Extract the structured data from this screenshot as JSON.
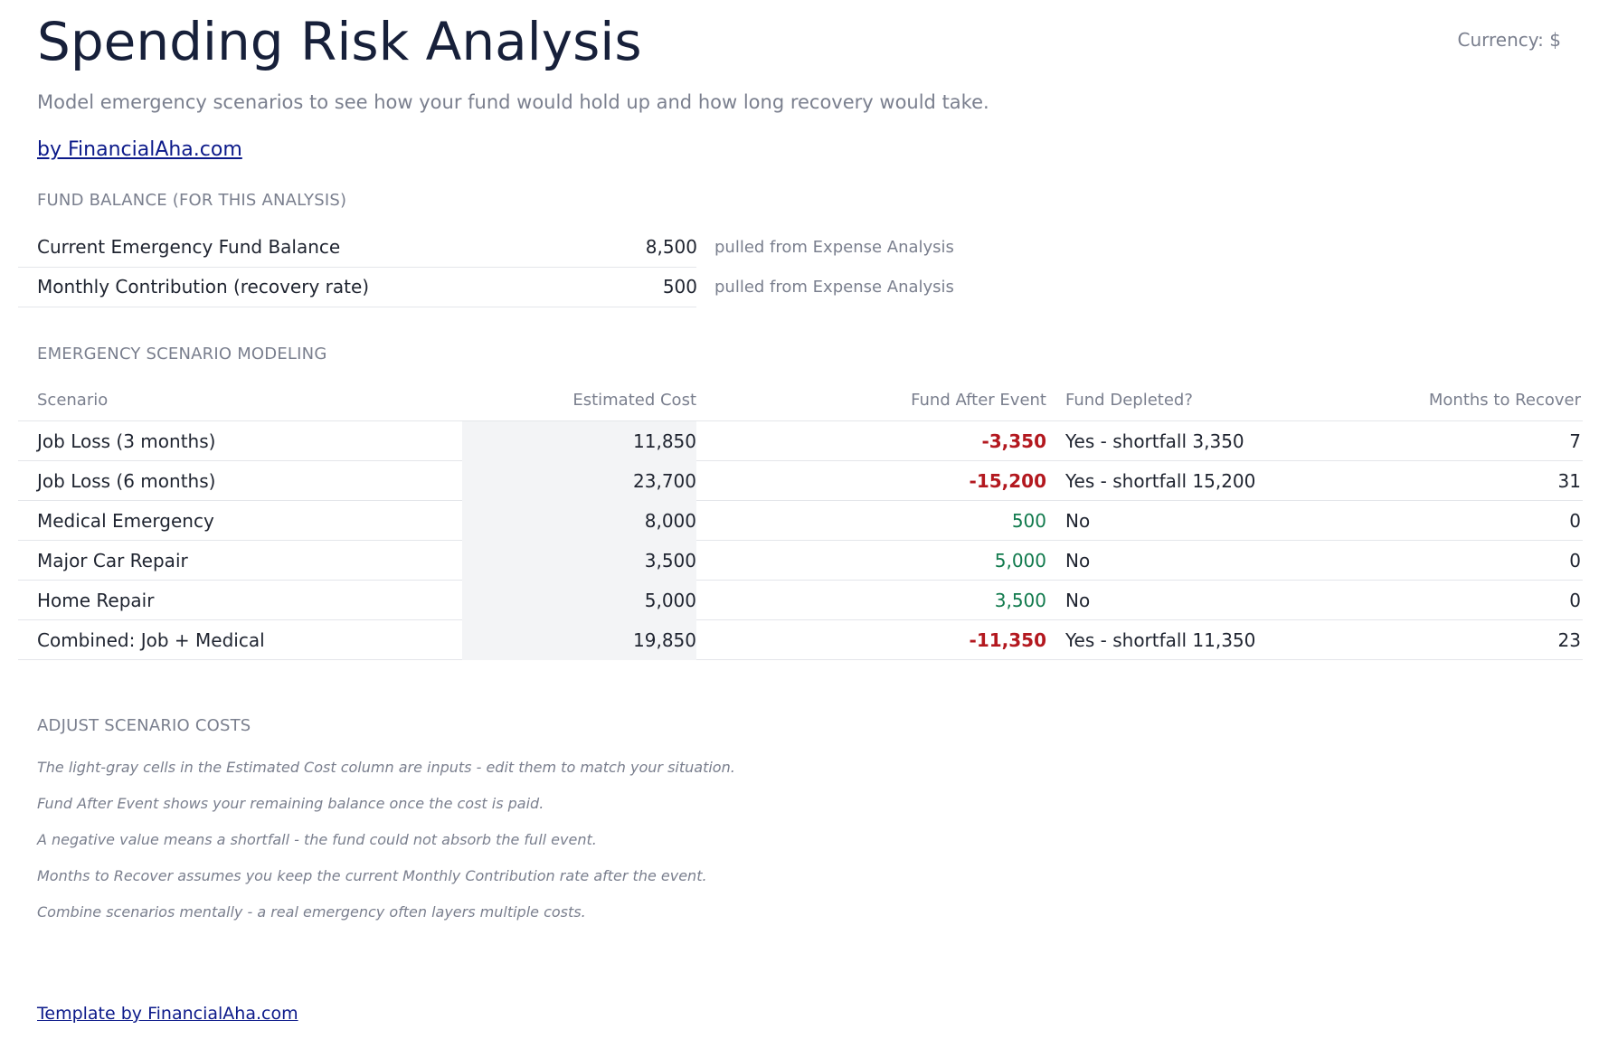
{
  "header": {
    "title": "Spending Risk Analysis",
    "currency": "Currency: $",
    "subtitle": "Model emergency scenarios to see how your fund would hold up and how long recovery would take.",
    "byline": "by FinancialAha.com"
  },
  "fund_balance": {
    "section_title": "FUND BALANCE (FOR THIS ANALYSIS)",
    "rows": [
      {
        "label": "Current Emergency Fund Balance",
        "value": "8,500",
        "note": "pulled from Expense Analysis"
      },
      {
        "label": "Monthly Contribution (recovery rate)",
        "value": "500",
        "note": "pulled from Expense Analysis"
      }
    ]
  },
  "scenarios": {
    "section_title": "EMERGENCY SCENARIO MODELING",
    "columns": [
      "Scenario",
      "Estimated Cost",
      "Fund After Event",
      "Fund Depleted?",
      "Months to Recover"
    ],
    "rows": [
      {
        "name": "Job Loss (3 months)",
        "cost": "11,850",
        "fund_after": "-3,350",
        "depleted": "Yes - shortfall 3,350",
        "months": "7"
      },
      {
        "name": "Job Loss (6 months)",
        "cost": "23,700",
        "fund_after": "-15,200",
        "depleted": "Yes - shortfall 15,200",
        "months": "31"
      },
      {
        "name": "Medical Emergency",
        "cost": "8,000",
        "fund_after": "500",
        "depleted": "No",
        "months": "0"
      },
      {
        "name": "Major Car Repair",
        "cost": "3,500",
        "fund_after": "5,000",
        "depleted": "No",
        "months": "0"
      },
      {
        "name": "Home Repair",
        "cost": "5,000",
        "fund_after": "3,500",
        "depleted": "No",
        "months": "0"
      },
      {
        "name": "Combined: Job + Medical",
        "cost": "19,850",
        "fund_after": "-11,350",
        "depleted": "Yes - shortfall 11,350",
        "months": "23"
      }
    ]
  },
  "adjust": {
    "section_title": "ADJUST SCENARIO COSTS",
    "notes": [
      "The light-gray cells in the Estimated Cost column are inputs - edit them to match your situation.",
      "Fund After Event shows your remaining balance once the cost is paid.",
      "A negative value means a shortfall - the fund could not absorb the full event.",
      "Months to Recover assumes you keep the current Monthly Contribution rate after the event.",
      "Combine scenarios mentally - a real emergency often layers multiple costs."
    ]
  },
  "footer": {
    "link": "Template by FinancialAha.com"
  },
  "colors": {
    "negative": "#b3181f",
    "positive": "#117a4d",
    "input_cell": "#f3f4f6",
    "link": "#0c1a8a"
  }
}
